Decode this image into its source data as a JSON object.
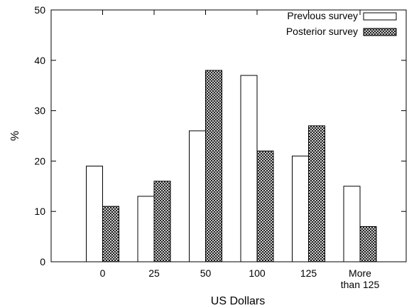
{
  "chart_data": {
    "type": "bar",
    "categories": [
      "0",
      "25",
      "50",
      "100",
      "125",
      "More\nthan 125"
    ],
    "series": [
      {
        "name": "Previous survey",
        "values": [
          19,
          13,
          26,
          37,
          21,
          15
        ],
        "fill": "plain"
      },
      {
        "name": "Posterior survey",
        "values": [
          11,
          16,
          38,
          22,
          27,
          7
        ],
        "fill": "crosshatch"
      }
    ],
    "xlabel": "US Dollars",
    "ylabel": "%",
    "ylim": [
      0,
      50
    ],
    "yticks": [
      0,
      10,
      20,
      30,
      40,
      50
    ],
    "grid": false,
    "legend_position": "top-right",
    "colors": {
      "bar_stroke": "#000000",
      "bar_fill": "#ffffff",
      "hatch": "#000000"
    }
  }
}
